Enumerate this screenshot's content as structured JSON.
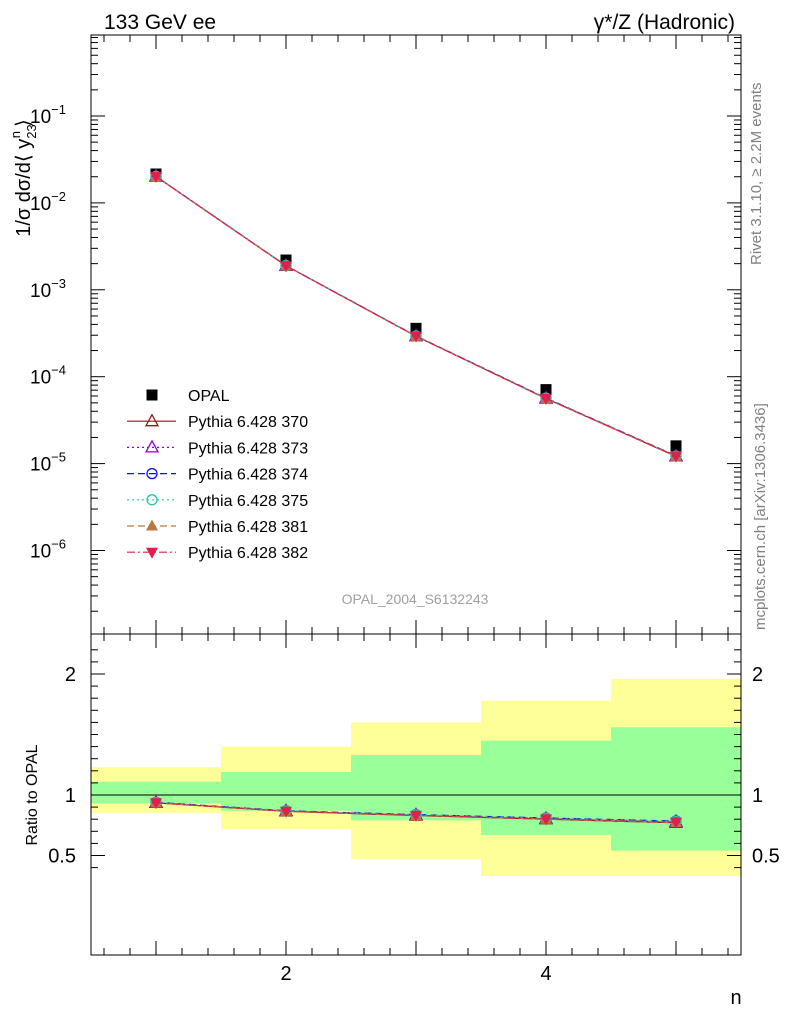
{
  "header": {
    "left_label": "133 GeV ee",
    "right_label": "γ*/Z (Hadronic)"
  },
  "side_labels": {
    "rivet": "Rivet 3.1.10, ≥ 2.2M events",
    "mcplots": "mcplots.cern.ch [arXiv:1306.3436]"
  },
  "analysis_id": "OPAL_2004_S6132243",
  "chart_data": [
    {
      "type": "scatter",
      "ylabel": "1/σ dσ/d⟨ y23n ⟩",
      "xlabel": "n",
      "yscale": "log",
      "ylim": [
        1e-07,
        1.0
      ],
      "xlim": [
        0.5,
        5.5
      ],
      "ytick_labels": [
        "10^-6",
        "10^-5",
        "10^-4",
        "10^-3",
        "10^-2",
        "10^-1"
      ],
      "x": [
        1,
        2,
        3,
        4,
        5
      ],
      "series": [
        {
          "name": "OPAL",
          "color": "#000000",
          "marker": "square",
          "line": "none",
          "values": [
            0.0215,
            0.0022,
            0.00036,
            7.1e-05,
            1.6e-05
          ]
        },
        {
          "name": "Pythia 6.428 370",
          "color": "#8b1a1a",
          "marker": "triangle-open",
          "line": "solid",
          "values": [
            0.0201,
            0.00189,
            0.000292,
            5.6e-05,
            1.21e-05
          ]
        },
        {
          "name": "Pythia 6.428 373",
          "color": "#9400d3",
          "marker": "triangle-open",
          "line": "dotted",
          "values": [
            0.0202,
            0.0019,
            0.000294,
            5.65e-05,
            1.22e-05
          ]
        },
        {
          "name": "Pythia 6.428 374",
          "color": "#1010e0",
          "marker": "circle-open",
          "line": "dashed",
          "values": [
            0.0202,
            0.0019,
            0.000295,
            5.68e-05,
            1.23e-05
          ]
        },
        {
          "name": "Pythia 6.428 375",
          "color": "#20c8b0",
          "marker": "circle-open",
          "line": "dotted",
          "values": [
            0.0202,
            0.0019,
            0.000294,
            5.66e-05,
            1.22e-05
          ]
        },
        {
          "name": "Pythia 6.428 381",
          "color": "#b87840",
          "marker": "triangle-filled",
          "line": "dashed",
          "values": [
            0.0201,
            0.00189,
            0.000292,
            5.6e-05,
            1.21e-05
          ]
        },
        {
          "name": "Pythia 6.428 382",
          "color": "#e0204a",
          "marker": "triangle-down-filled",
          "line": "dashdot",
          "values": [
            0.0201,
            0.00189,
            0.000293,
            5.62e-05,
            1.22e-05
          ]
        }
      ],
      "legend_position": "bottom-left"
    },
    {
      "type": "line",
      "ylabel": "Ratio to OPAL",
      "xlabel": "n",
      "ylim": [
        0.33,
        2.25
      ],
      "xlim": [
        0.5,
        5.5
      ],
      "ytick_labels": [
        "0.5",
        "1",
        "2"
      ],
      "xtick_labels": [
        "2",
        "4"
      ],
      "x": [
        1,
        2,
        3,
        4,
        5
      ],
      "reference_line": 1,
      "bands": {
        "bin_edges": [
          0.5,
          1.5,
          2.5,
          3.5,
          4.5,
          5.5
        ],
        "yellow_low": [
          0.85,
          0.72,
          0.47,
          0.33,
          0.33
        ],
        "yellow_high": [
          1.23,
          1.4,
          1.6,
          1.78,
          1.96
        ],
        "green_low": [
          0.93,
          0.87,
          0.79,
          0.67,
          0.54
        ],
        "green_high": [
          1.11,
          1.19,
          1.33,
          1.45,
          1.56
        ]
      },
      "series": [
        {
          "name": "Pythia 6.428 370",
          "color": "#8b1a1a",
          "values": [
            0.935,
            0.865,
            0.83,
            0.8,
            0.77
          ]
        },
        {
          "name": "Pythia 6.428 373",
          "color": "#9400d3",
          "values": [
            0.938,
            0.868,
            0.835,
            0.805,
            0.78
          ]
        },
        {
          "name": "Pythia 6.428 374",
          "color": "#1010e0",
          "values": [
            0.94,
            0.87,
            0.838,
            0.81,
            0.785
          ]
        },
        {
          "name": "Pythia 6.428 375",
          "color": "#20c8b0",
          "values": [
            0.939,
            0.869,
            0.836,
            0.808,
            0.782
          ]
        },
        {
          "name": "Pythia 6.428 381",
          "color": "#b87840",
          "values": [
            0.935,
            0.865,
            0.83,
            0.8,
            0.772
          ]
        },
        {
          "name": "Pythia 6.428 382",
          "color": "#e0204a",
          "values": [
            0.936,
            0.866,
            0.832,
            0.803,
            0.776
          ]
        }
      ]
    }
  ]
}
